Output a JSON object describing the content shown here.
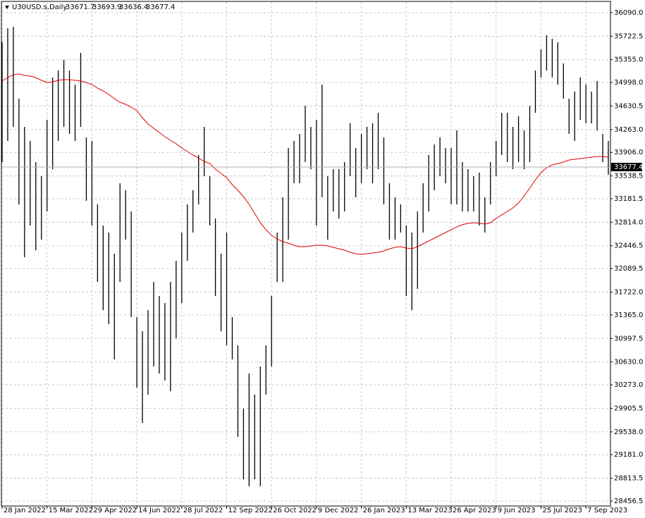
{
  "chart_data": {
    "type": "ohlc",
    "title": "U30USD.s,Daily",
    "header_values": [
      33671.7,
      33693.9,
      33636.4,
      33677.4
    ],
    "last_price": 33677.4,
    "color": "#000000",
    "grid": true,
    "ylim": [
      28379,
      36255
    ],
    "yticks": [
      {
        "value": 36090,
        "label": "36090.0"
      },
      {
        "value": 35722.5,
        "label": "35722.5"
      },
      {
        "value": 35355,
        "label": "35355.0"
      },
      {
        "value": 34998,
        "label": "34998.0"
      },
      {
        "value": 34630.5,
        "label": "34630.5"
      },
      {
        "value": 34263,
        "label": "34263.0"
      },
      {
        "value": 33906,
        "label": "33906.0"
      },
      {
        "value": 33538.5,
        "label": "33538.5"
      },
      {
        "value": 33181.5,
        "label": "33181.5"
      },
      {
        "value": 32814,
        "label": "32814.0"
      },
      {
        "value": 32446.5,
        "label": "32446.5"
      },
      {
        "value": 32089.5,
        "label": "32089.5"
      },
      {
        "value": 31722,
        "label": "31722.0"
      },
      {
        "value": 31365,
        "label": "31365.0"
      },
      {
        "value": 30997.5,
        "label": "30997.5"
      },
      {
        "value": 30630,
        "label": "30630.0"
      },
      {
        "value": 30273,
        "label": "30273.0"
      },
      {
        "value": 29905.5,
        "label": "29905.5"
      },
      {
        "value": 29538,
        "label": "29538.0"
      },
      {
        "value": 29181,
        "label": "29181.0"
      },
      {
        "value": 28813.5,
        "label": "28813.5"
      },
      {
        "value": 28456.5,
        "label": "28456.5"
      }
    ],
    "categories": [
      "28 Jan 2022",
      null,
      null,
      null,
      null,
      null,
      null,
      null,
      "15 Mar 2022",
      null,
      null,
      null,
      null,
      null,
      null,
      null,
      "29 Apr 2022",
      null,
      null,
      null,
      null,
      null,
      null,
      null,
      "14 Jun 2022",
      null,
      null,
      null,
      null,
      null,
      null,
      null,
      "28 Jul 2022",
      null,
      null,
      null,
      null,
      null,
      null,
      null,
      "12 Sep 2022",
      null,
      null,
      null,
      null,
      null,
      null,
      null,
      "26 Oct 2022",
      null,
      null,
      null,
      null,
      null,
      null,
      null,
      "9 Dec 2022",
      null,
      null,
      null,
      null,
      null,
      null,
      null,
      "26 Jan 2023",
      null,
      null,
      null,
      null,
      null,
      null,
      null,
      "13 Mar 2023",
      null,
      null,
      null,
      null,
      null,
      null,
      null,
      "26 Apr 2023",
      null,
      null,
      null,
      null,
      null,
      null,
      null,
      "9 Jun 2023",
      null,
      null,
      null,
      null,
      null,
      null,
      null,
      "25 Jul 2023",
      null,
      null,
      null,
      null,
      null,
      null,
      null,
      "7 Sep 2023",
      null,
      null,
      null,
      null
    ],
    "high": [
      35627,
      35847,
      35869,
      34746,
      34305,
      34085,
      33755,
      33534,
      34415,
      35076,
      35186,
      35352,
      35186,
      34966,
      35462,
      34140,
      34085,
      33094,
      32763,
      32653,
      32323,
      33424,
      33314,
      32983,
      31331,
      31111,
      31441,
      31882,
      31662,
      31552,
      31882,
      32212,
      32653,
      33094,
      33314,
      33865,
      34305,
      33534,
      32873,
      32323,
      32653,
      31331,
      30891,
      29899,
      30450,
      30120,
      30560,
      30891,
      31662,
      32653,
      33204,
      33975,
      34085,
      34195,
      34636,
      34305,
      34415,
      34966,
      33534,
      33644,
      33644,
      33755,
      34360,
      33975,
      34195,
      34305,
      34360,
      34526,
      34140,
      33424,
      33204,
      33094,
      32763,
      32653,
      32983,
      33424,
      33865,
      34030,
      34140,
      33975,
      33975,
      34250,
      33755,
      33644,
      33534,
      33589,
      33204,
      33755,
      34085,
      34526,
      34526,
      34305,
      34471,
      34250,
      34636,
      35186,
      35517,
      35737,
      35682,
      35627,
      35297,
      34746,
      34856,
      35076,
      34966,
      34856,
      35021,
      34195,
      34085
    ],
    "low": [
      33755,
      34085,
      34305,
      33094,
      32268,
      32763,
      32378,
      32543,
      32983,
      33644,
      34085,
      34305,
      34195,
      34085,
      34305,
      33149,
      32763,
      31882,
      31441,
      31221,
      30670,
      31882,
      32543,
      31331,
      30230,
      29679,
      30120,
      30560,
      30450,
      30340,
      30175,
      31001,
      31552,
      32212,
      32653,
      33094,
      33534,
      32763,
      31662,
      31111,
      30891,
      30670,
      29459,
      28798,
      28688,
      28798,
      28688,
      30120,
      30560,
      31882,
      31882,
      32543,
      33424,
      33424,
      33755,
      33644,
      32763,
      33204,
      32543,
      32983,
      32873,
      32983,
      33534,
      33204,
      33424,
      33644,
      33424,
      33644,
      33094,
      32543,
      32543,
      32653,
      31662,
      31441,
      31772,
      32653,
      32983,
      33314,
      33534,
      33424,
      33094,
      33094,
      32983,
      32983,
      32983,
      32763,
      32653,
      33094,
      33534,
      33865,
      33755,
      33644,
      33755,
      33644,
      33755,
      34526,
      35076,
      35186,
      35076,
      34966,
      34746,
      34195,
      34085,
      34415,
      34360,
      34360,
      34250,
      33755,
      33556
    ],
    "ma": {
      "color": "#e00000",
      "values": [
        35021,
        35076,
        35120,
        35131,
        35109,
        35098,
        35076,
        35032,
        34999,
        35010,
        35032,
        35043,
        35043,
        35032,
        35021,
        34999,
        34966,
        34911,
        34867,
        34812,
        34746,
        34691,
        34658,
        34614,
        34559,
        34449,
        34349,
        34283,
        34217,
        34151,
        34096,
        34041,
        33975,
        33920,
        33865,
        33821,
        33766,
        33733,
        33644,
        33578,
        33512,
        33402,
        33314,
        33215,
        33094,
        32951,
        32807,
        32698,
        32609,
        32554,
        32510,
        32488,
        32455,
        32433,
        32433,
        32444,
        32455,
        32455,
        32444,
        32422,
        32400,
        32378,
        32345,
        32323,
        32312,
        32323,
        32334,
        32345,
        32367,
        32400,
        32422,
        32433,
        32411,
        32400,
        32433,
        32477,
        32521,
        32565,
        32609,
        32653,
        32698,
        32742,
        32775,
        32797,
        32807,
        32797,
        32786,
        32807,
        32873,
        32929,
        32983,
        33038,
        33116,
        33226,
        33347,
        33479,
        33589,
        33666,
        33710,
        33733,
        33755,
        33788,
        33799,
        33810,
        33821,
        33832,
        33843,
        33843,
        33832
      ]
    }
  }
}
